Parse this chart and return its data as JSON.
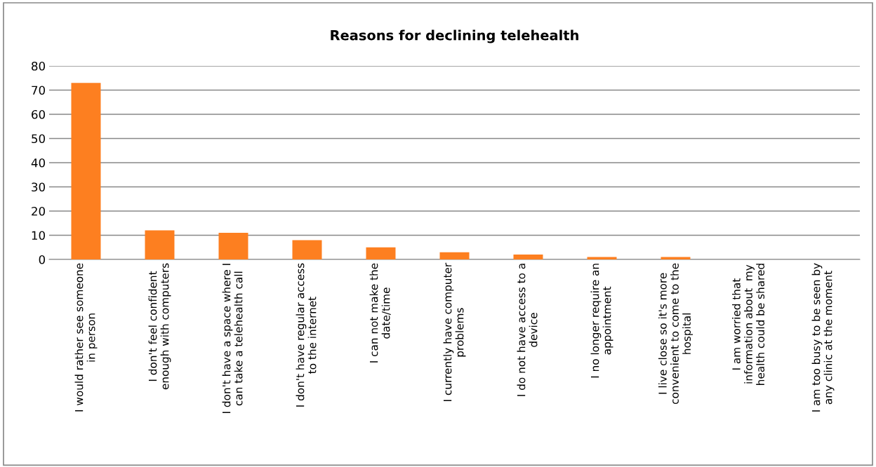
{
  "chart_data": {
    "type": "bar",
    "title": "Reasons for declining telehealth",
    "categories": [
      "I would rather see someone\nin person",
      "I don't feel confident\nenough with computers",
      "I don't have a space where I\ncan take a telehealth call",
      "I don't have regular access\nto the internet",
      "I can not make the\ndate/time",
      "I currently have computer\nproblems",
      "I do not have access to a\ndevice",
      "I no longer require an\nappointment",
      "I live close so it's more\nconvenient to come to the\nhospital",
      "I am worried that\ninformation about  my\nhealth could be shared",
      "I am too busy to be seen by\nany clinic at the moment"
    ],
    "values": [
      73,
      12,
      11,
      8,
      5,
      3,
      2,
      1,
      1,
      0,
      0
    ],
    "color": "#fd7f20",
    "ylim": [
      0,
      80
    ],
    "yticks": [
      0,
      10,
      20,
      30,
      40,
      50,
      60,
      70,
      80
    ],
    "grid": "y",
    "legend": false
  }
}
